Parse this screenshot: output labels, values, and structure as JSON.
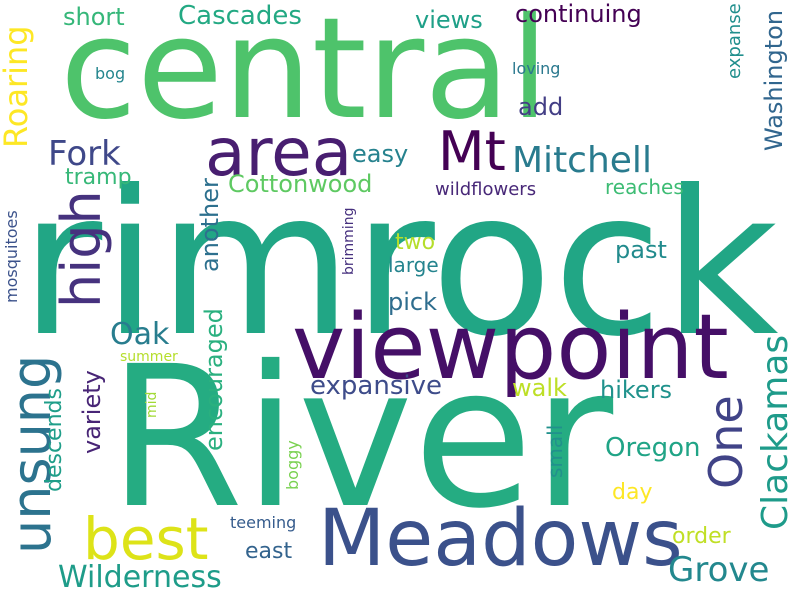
{
  "words": [
    {
      "text": "rimrock",
      "color": "#21a685",
      "rotate": false
    },
    {
      "text": "River",
      "color": "#25ac82",
      "rotate": false
    },
    {
      "text": "central",
      "color": "#4ec36b",
      "rotate": false
    },
    {
      "text": "viewpoint",
      "color": "#450f67",
      "rotate": false
    },
    {
      "text": "Meadows",
      "color": "#3b518b",
      "rotate": false
    },
    {
      "text": "area",
      "color": "#481e70",
      "rotate": false
    },
    {
      "text": "high",
      "color": "#46327e",
      "rotate": true
    },
    {
      "text": "unsung",
      "color": "#2c738e",
      "rotate": true
    },
    {
      "text": "best",
      "color": "#dde318",
      "rotate": false
    },
    {
      "text": "Mt",
      "color": "#440154",
      "rotate": false
    },
    {
      "text": "One",
      "color": "#404387",
      "rotate": true
    },
    {
      "text": "Mitchell",
      "color": "#297b8e",
      "rotate": false
    },
    {
      "text": "Clackamas",
      "color": "#1e9b8a",
      "rotate": true
    },
    {
      "text": "Grove",
      "color": "#23888e",
      "rotate": false
    },
    {
      "text": "Wilderness",
      "color": "#1e9c89",
      "rotate": false
    },
    {
      "text": "Fork",
      "color": "#3f4889",
      "rotate": false
    },
    {
      "text": "Roaring",
      "color": "#fde725",
      "rotate": true
    },
    {
      "text": "Oak",
      "color": "#287d8e",
      "rotate": false
    },
    {
      "text": "Cascades",
      "color": "#23a983",
      "rotate": false
    },
    {
      "text": "Washington",
      "color": "#31668e",
      "rotate": true
    },
    {
      "text": "expansive",
      "color": "#3e4c8a",
      "rotate": false
    },
    {
      "text": "encouraged",
      "color": "#2ab07f",
      "rotate": true
    },
    {
      "text": "Cottonwood",
      "color": "#5ec962",
      "rotate": false
    },
    {
      "text": "Oregon",
      "color": "#20a486",
      "rotate": false
    },
    {
      "text": "continuing",
      "color": "#440154",
      "rotate": false
    },
    {
      "text": "views",
      "color": "#1fa088",
      "rotate": false
    },
    {
      "text": "short",
      "color": "#35b779",
      "rotate": false
    },
    {
      "text": "easy",
      "color": "#26828e",
      "rotate": false
    },
    {
      "text": "add",
      "color": "#433e85",
      "rotate": false
    },
    {
      "text": "another",
      "color": "#2d708e",
      "rotate": true
    },
    {
      "text": "variety",
      "color": "#482576",
      "rotate": true
    },
    {
      "text": "descends",
      "color": "#1f9e89",
      "rotate": true
    },
    {
      "text": "hikers",
      "color": "#20928c",
      "rotate": false
    },
    {
      "text": "walk",
      "color": "#bddf26",
      "rotate": false
    },
    {
      "text": "past",
      "color": "#228b8d",
      "rotate": false
    },
    {
      "text": "pick",
      "color": "#2e6d8e",
      "rotate": false
    },
    {
      "text": "tramp",
      "color": "#37b878",
      "rotate": false
    },
    {
      "text": "two",
      "color": "#b5de2b",
      "rotate": false
    },
    {
      "text": "large",
      "color": "#25848e",
      "rotate": false
    },
    {
      "text": "reaches",
      "color": "#3dbc74",
      "rotate": false
    },
    {
      "text": "wildflowers",
      "color": "#482878",
      "rotate": false
    },
    {
      "text": "day",
      "color": "#fde725",
      "rotate": false
    },
    {
      "text": "order",
      "color": "#c0df25",
      "rotate": false
    },
    {
      "text": "east",
      "color": "#33638d",
      "rotate": false
    },
    {
      "text": "small",
      "color": "#21918c",
      "rotate": true
    },
    {
      "text": "expanse",
      "color": "#218f8d",
      "rotate": true
    },
    {
      "text": "loving",
      "color": "#2a788e",
      "rotate": false
    },
    {
      "text": "bog",
      "color": "#24868e",
      "rotate": false
    },
    {
      "text": "mosquitoes",
      "color": "#3b528b",
      "rotate": true
    },
    {
      "text": "brimming",
      "color": "#46307e",
      "rotate": true
    },
    {
      "text": "summer",
      "color": "#b5de2b",
      "rotate": false
    },
    {
      "text": "mid",
      "color": "#a2da37",
      "rotate": true
    },
    {
      "text": "boggy",
      "color": "#7ad151",
      "rotate": true
    },
    {
      "text": "teeming",
      "color": "#365c8d",
      "rotate": false
    }
  ]
}
